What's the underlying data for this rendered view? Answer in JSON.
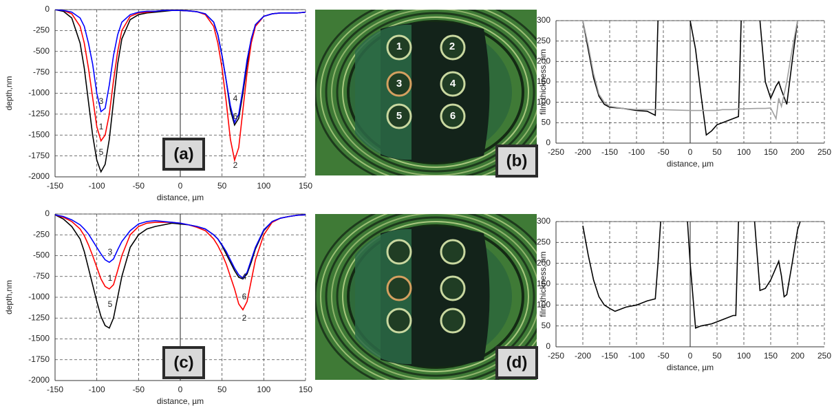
{
  "chart_data": [
    {
      "type": "line",
      "panel_label": "(a)",
      "xlabel": "distance, µm",
      "ylabel": "depth,nm",
      "xlim": [
        -150,
        150
      ],
      "xticks": [
        -150,
        -100,
        -50,
        0,
        50,
        100,
        150
      ],
      "ylim": [
        -2000,
        0
      ],
      "yticks": [
        0,
        -250,
        -500,
        -750,
        -1000,
        -1250,
        -1500,
        -1750,
        -2000
      ],
      "grid": true,
      "annotations": [
        "3",
        "1",
        "5",
        "4",
        "6",
        "2"
      ],
      "x": [
        -150,
        -140,
        -130,
        -120,
        -115,
        -110,
        -105,
        -100,
        -95,
        -90,
        -85,
        -80,
        -75,
        -70,
        -60,
        -50,
        -40,
        -30,
        -20,
        -10,
        0,
        10,
        20,
        30,
        40,
        45,
        50,
        55,
        60,
        65,
        70,
        75,
        80,
        85,
        90,
        100,
        110,
        120,
        130,
        140,
        150
      ],
      "series": [
        {
          "color": "#000000",
          "values": [
            0,
            -20,
            -100,
            -400,
            -700,
            -1100,
            -1500,
            -1800,
            -1940,
            -1850,
            -1550,
            -1100,
            -650,
            -350,
            -120,
            -60,
            -40,
            -30,
            -20,
            -10,
            -10,
            -15,
            -25,
            -50,
            -150,
            -300,
            -550,
            -850,
            -1200,
            -1380,
            -1300,
            -1000,
            -650,
            -350,
            -180,
            -80,
            -50,
            -40,
            -40,
            -40,
            -30
          ]
        },
        {
          "color": "#ff0000",
          "values": [
            0,
            -10,
            -50,
            -200,
            -400,
            -700,
            -1050,
            -1400,
            -1570,
            -1500,
            -1250,
            -850,
            -500,
            -250,
            -80,
            -40,
            -30,
            -20,
            -10,
            -10,
            -10,
            -15,
            -25,
            -60,
            -200,
            -400,
            -700,
            -1100,
            -1550,
            -1800,
            -1650,
            -1200,
            -750,
            -400,
            -200,
            -80,
            -50,
            -40,
            -40,
            -40,
            -30
          ]
        },
        {
          "color": "#0000ff",
          "values": [
            0,
            -10,
            -30,
            -100,
            -200,
            -400,
            -650,
            -1000,
            -1220,
            -1180,
            -900,
            -550,
            -300,
            -150,
            -60,
            -30,
            -20,
            -20,
            -10,
            -10,
            -10,
            -15,
            -25,
            -50,
            -150,
            -300,
            -550,
            -850,
            -1150,
            -1350,
            -1250,
            -950,
            -600,
            -350,
            -180,
            -80,
            -50,
            -40,
            -40,
            -40,
            -30
          ]
        }
      ]
    },
    {
      "type": "line",
      "panel_label": "(b)",
      "xlabel": "distance, µm",
      "ylabel": "film thickness, nm",
      "xlim": [
        -250,
        250
      ],
      "xticks": [
        -250,
        -200,
        -150,
        -100,
        -50,
        0,
        50,
        100,
        150,
        200,
        250
      ],
      "ylim": [
        0,
        300
      ],
      "yticks": [
        0,
        50,
        100,
        150,
        200,
        250,
        300
      ],
      "grid": true,
      "x": [
        -200,
        -190,
        -180,
        -170,
        -160,
        -150,
        -125,
        -100,
        -80,
        -65,
        -60,
        -55,
        0,
        10,
        20,
        30,
        40,
        50,
        60,
        70,
        80,
        90,
        95,
        125,
        130,
        140,
        150,
        160,
        165,
        170,
        180,
        190,
        200
      ],
      "series": [
        {
          "color": "#000000",
          "values": [
            300,
            230,
            160,
            115,
            95,
            88,
            85,
            80,
            78,
            68,
            300,
            null,
            300,
            230,
            120,
            20,
            30,
            45,
            50,
            55,
            60,
            65,
            300,
            null,
            300,
            150,
            110,
            140,
            150,
            130,
            95,
            200,
            300
          ]
        },
        {
          "color": "#a0a0a0",
          "values": [
            300,
            240,
            170,
            120,
            100,
            90,
            85,
            82,
            82,
            82,
            82,
            82,
            80,
            80,
            80,
            80,
            80,
            80,
            82,
            82,
            82,
            84,
            84,
            85,
            85,
            85,
            86,
            60,
            110,
            90,
            150,
            230,
            300
          ]
        }
      ]
    },
    {
      "type": "line",
      "panel_label": "(c)",
      "xlabel": "distance, µm",
      "ylabel": "depth,nm",
      "xlim": [
        -150,
        150
      ],
      "xticks": [
        -150,
        -100,
        -50,
        0,
        50,
        100,
        150
      ],
      "ylim": [
        -2000,
        0
      ],
      "yticks": [
        0,
        -250,
        -500,
        -750,
        -1000,
        -1250,
        -1500,
        -1750,
        -2000
      ],
      "grid": true,
      "annotations": [
        "3",
        "1",
        "5",
        "4",
        "6",
        "2"
      ],
      "x": [
        -150,
        -140,
        -130,
        -120,
        -115,
        -110,
        -105,
        -100,
        -95,
        -90,
        -85,
        -80,
        -75,
        -70,
        -60,
        -50,
        -40,
        -30,
        -20,
        -10,
        0,
        10,
        20,
        30,
        40,
        45,
        50,
        55,
        60,
        65,
        70,
        75,
        80,
        85,
        90,
        100,
        110,
        120,
        130,
        140,
        150
      ],
      "series": [
        {
          "color": "#000000",
          "values": [
            -10,
            -60,
            -150,
            -300,
            -450,
            -650,
            -850,
            -1050,
            -1230,
            -1340,
            -1370,
            -1250,
            -1000,
            -750,
            -400,
            -250,
            -180,
            -150,
            -130,
            -110,
            -120,
            -130,
            -150,
            -180,
            -250,
            -300,
            -380,
            -480,
            -580,
            -680,
            -760,
            -780,
            -720,
            -580,
            -420,
            -200,
            -90,
            -50,
            -30,
            -15,
            -10
          ]
        },
        {
          "color": "#ff0000",
          "values": [
            -10,
            -40,
            -90,
            -180,
            -260,
            -370,
            -500,
            -640,
            -780,
            -870,
            -900,
            -850,
            -680,
            -500,
            -250,
            -150,
            -110,
            -100,
            -100,
            -100,
            -110,
            -130,
            -160,
            -200,
            -300,
            -380,
            -480,
            -600,
            -750,
            -900,
            -1080,
            -1150,
            -1050,
            -800,
            -550,
            -250,
            -100,
            -50,
            -30,
            -15,
            -10
          ]
        },
        {
          "color": "#0000ff",
          "values": [
            -10,
            -30,
            -70,
            -130,
            -180,
            -240,
            -320,
            -400,
            -480,
            -550,
            -580,
            -540,
            -430,
            -330,
            -200,
            -120,
            -90,
            -80,
            -90,
            -100,
            -110,
            -130,
            -150,
            -180,
            -250,
            -300,
            -370,
            -450,
            -550,
            -650,
            -730,
            -770,
            -700,
            -550,
            -400,
            -190,
            -90,
            -50,
            -30,
            -15,
            -10
          ]
        }
      ]
    },
    {
      "type": "line",
      "panel_label": "(d)",
      "xlabel": "distance, µm",
      "ylabel": "film thickness, nm",
      "xlim": [
        -250,
        250
      ],
      "xticks": [
        -250,
        -200,
        -150,
        -100,
        -50,
        0,
        50,
        100,
        150,
        200,
        250
      ],
      "ylim": [
        0,
        300
      ],
      "yticks": [
        0,
        50,
        100,
        150,
        200,
        250,
        300
      ],
      "grid": true,
      "x": [
        -210,
        -200,
        -190,
        -180,
        -170,
        -160,
        -150,
        -140,
        -120,
        -100,
        -80,
        -65,
        -60,
        -55,
        -30,
        -5,
        0,
        10,
        20,
        40,
        60,
        80,
        85,
        90,
        115,
        120,
        130,
        140,
        150,
        160,
        165,
        170,
        175,
        180,
        190,
        200,
        205
      ],
      "series": [
        {
          "color": "#000000",
          "values": [
            null,
            290,
            220,
            160,
            120,
            100,
            92,
            85,
            95,
            100,
            110,
            115,
            200,
            300,
            null,
            300,
            200,
            45,
            50,
            55,
            65,
            75,
            75,
            300,
            null,
            300,
            135,
            140,
            160,
            190,
            205,
            170,
            120,
            125,
            200,
            280,
            300
          ]
        }
      ]
    }
  ],
  "image_labels": [
    "1",
    "2",
    "3",
    "4",
    "5",
    "6"
  ]
}
